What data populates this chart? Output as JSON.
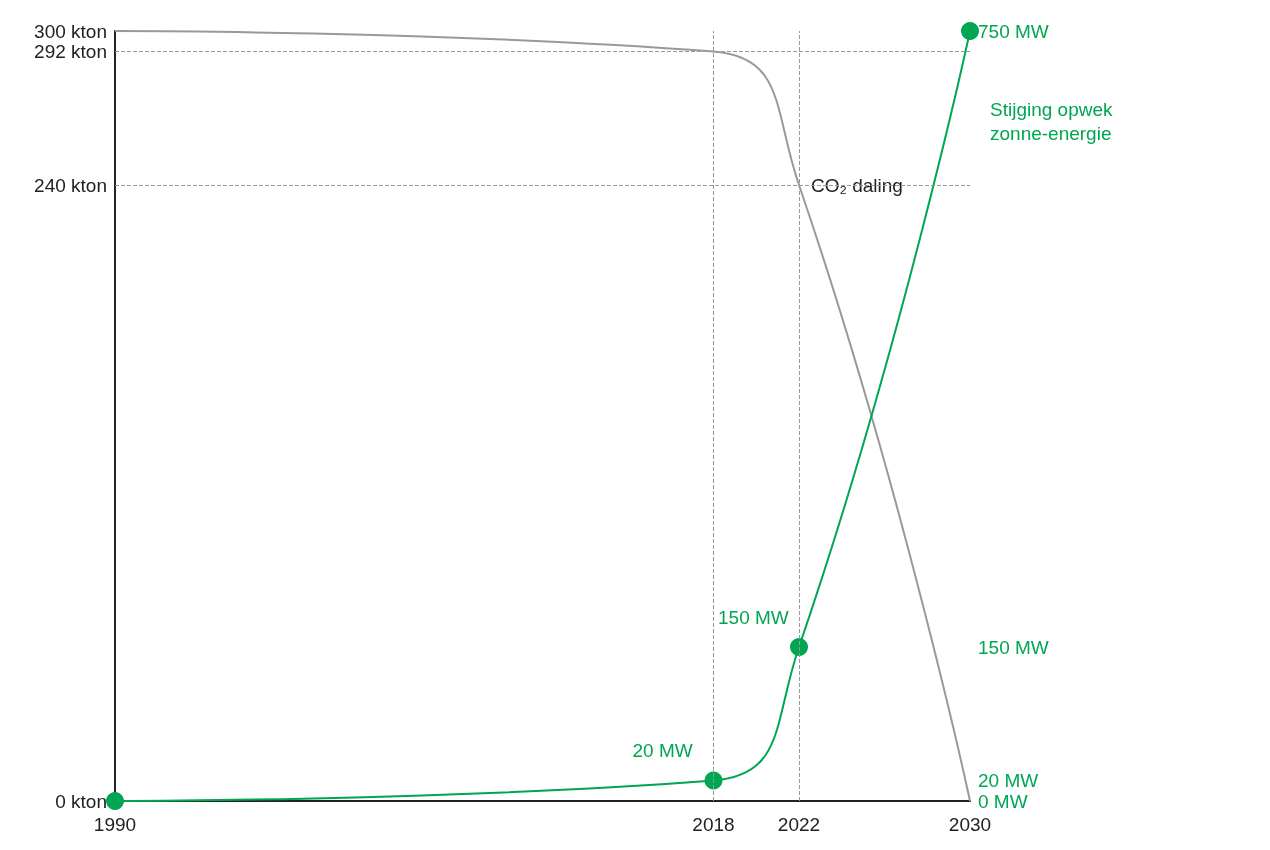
{
  "chart_data": {
    "type": "line",
    "x": [
      1990,
      2018,
      2022,
      2030
    ],
    "xlim": [
      1990,
      2030
    ],
    "xticks": [
      1990,
      2018,
      2022,
      2030
    ],
    "ylim": [
      0,
      300
    ],
    "yticks": [
      {
        "value": 0,
        "label": "0 kton"
      },
      {
        "value": 240,
        "label": "240 kton"
      },
      {
        "value": 292,
        "label": "292 kton"
      },
      {
        "value": 300,
        "label": "300 kton"
      }
    ],
    "y2lim": [
      0,
      750
    ],
    "y2ticks": [
      {
        "value": 0,
        "label": "0 MW"
      },
      {
        "value": 20,
        "label": "20 MW"
      },
      {
        "value": 150,
        "label": "150 MW"
      },
      {
        "value": 750,
        "label": "750 MW"
      }
    ],
    "series": [
      {
        "name": "CO₂ daling",
        "color": "#999999",
        "values": [
          300,
          292,
          240,
          0
        ],
        "marker": "none"
      },
      {
        "name": "Stijging opwek zonne-energie",
        "color": "#00a651",
        "axis": "y2",
        "values": [
          0,
          20,
          150,
          750
        ],
        "value_labels": [
          null,
          "20 MW",
          "150 MW",
          null
        ],
        "marker": "circle"
      }
    ],
    "ref_lines": [
      {
        "axis": "x",
        "value": 2018,
        "color": "#999999",
        "line_style": "dashed"
      },
      {
        "axis": "x",
        "value": 2022,
        "color": "#999999",
        "line_style": "dashed"
      },
      {
        "axis": "y",
        "value": 292,
        "color": "#999999",
        "line_style": "dashed"
      },
      {
        "axis": "y",
        "value": 240,
        "color": "#999999",
        "line_style": "dashed"
      }
    ],
    "grid": false,
    "legend": false
  }
}
